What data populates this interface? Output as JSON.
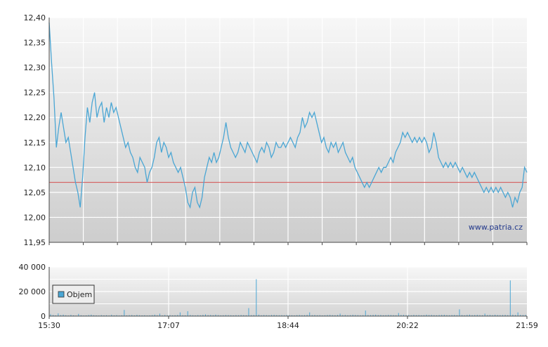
{
  "chart_data": [
    {
      "type": "line",
      "title": "",
      "xlabel": "",
      "ylabel": "",
      "ylim": [
        11.95,
        12.4
      ],
      "y_ticks": [
        "12,40",
        "12,35",
        "12,30",
        "12,25",
        "12,20",
        "12,15",
        "12,10",
        "12,05",
        "12,00",
        "11,95"
      ],
      "reference_line": 12.07,
      "grid": true,
      "watermark": "www.patria.cz",
      "colors": {
        "line": "#4aa6d4",
        "reference": "#d45050",
        "plot_bg_top": "#f7f7f7",
        "plot_bg_bottom": "#cdcdcd"
      },
      "series": [
        {
          "values": [
            12.39,
            12.31,
            12.24,
            12.14,
            12.18,
            12.21,
            12.18,
            12.15,
            12.16,
            12.13,
            12.1,
            12.07,
            12.05,
            12.02,
            12.08,
            12.16,
            12.22,
            12.19,
            12.23,
            12.25,
            12.2,
            12.22,
            12.23,
            12.19,
            12.22,
            12.2,
            12.23,
            12.21,
            12.22,
            12.2,
            12.18,
            12.16,
            12.14,
            12.15,
            12.13,
            12.12,
            12.1,
            12.09,
            12.12,
            12.11,
            12.1,
            12.07,
            12.09,
            12.1,
            12.12,
            12.15,
            12.16,
            12.13,
            12.15,
            12.14,
            12.12,
            12.13,
            12.11,
            12.1,
            12.09,
            12.1,
            12.08,
            12.06,
            12.03,
            12.02,
            12.05,
            12.06,
            12.03,
            12.02,
            12.04,
            12.08,
            12.1,
            12.12,
            12.11,
            12.13,
            12.11,
            12.12,
            12.14,
            12.16,
            12.19,
            12.16,
            12.14,
            12.13,
            12.12,
            12.13,
            12.15,
            12.14,
            12.13,
            12.15,
            12.14,
            12.13,
            12.12,
            12.11,
            12.13,
            12.14,
            12.13,
            12.15,
            12.14,
            12.12,
            12.13,
            12.15,
            12.14,
            12.14,
            12.15,
            12.14,
            12.15,
            12.16,
            12.15,
            12.14,
            12.16,
            12.17,
            12.2,
            12.18,
            12.19,
            12.21,
            12.2,
            12.21,
            12.19,
            12.17,
            12.15,
            12.16,
            12.14,
            12.13,
            12.15,
            12.14,
            12.15,
            12.13,
            12.14,
            12.15,
            12.13,
            12.12,
            12.11,
            12.12,
            12.1,
            12.09,
            12.08,
            12.07,
            12.06,
            12.07,
            12.06,
            12.07,
            12.08,
            12.09,
            12.1,
            12.09,
            12.1,
            12.1,
            12.11,
            12.12,
            12.11,
            12.13,
            12.14,
            12.15,
            12.17,
            12.16,
            12.17,
            12.16,
            12.15,
            12.16,
            12.15,
            12.16,
            12.15,
            12.16,
            12.15,
            12.13,
            12.14,
            12.17,
            12.15,
            12.12,
            12.11,
            12.1,
            12.11,
            12.1,
            12.11,
            12.1,
            12.11,
            12.1,
            12.09,
            12.1,
            12.09,
            12.08,
            12.09,
            12.08,
            12.09,
            12.08,
            12.07,
            12.06,
            12.05,
            12.06,
            12.05,
            12.06,
            12.05,
            12.06,
            12.05,
            12.06,
            12.05,
            12.04,
            12.05,
            12.04,
            12.02,
            12.04,
            12.03,
            12.05,
            12.06,
            12.1,
            12.09
          ]
        }
      ]
    },
    {
      "type": "bar",
      "title": "",
      "xlabel": "",
      "ylabel": "",
      "ylim": [
        0,
        40000
      ],
      "y_ticks": [
        "40 000",
        "20 000",
        "0"
      ],
      "x_ticks": [
        "15:30",
        "17:07",
        "18:44",
        "20:22",
        "21:59"
      ],
      "grid": true,
      "legend": {
        "label": "Objem",
        "placement": "bottom-left"
      },
      "colors": {
        "bar": "#4aa6d4",
        "plot_bg_top": "#f7f7f7",
        "plot_bg_bottom": "#cdcdcd"
      },
      "series": [
        {
          "name": "Objem",
          "values": [
            1500,
            900,
            600,
            2200,
            800,
            1200,
            700,
            500,
            1000,
            600,
            400,
            1800,
            700,
            500,
            600,
            900,
            1200,
            700,
            600,
            500,
            800,
            600,
            700,
            500,
            1100,
            600,
            800,
            500,
            700,
            5000,
            600,
            800,
            900,
            600,
            1000,
            700,
            600,
            700,
            500,
            600,
            800,
            1200,
            700,
            2000,
            600,
            900,
            700,
            800,
            600,
            700,
            900,
            3000,
            700,
            600,
            4000,
            900,
            700,
            600,
            800,
            700,
            1000,
            1400,
            800,
            900,
            700,
            1200,
            800,
            600,
            700,
            900,
            800,
            700,
            600,
            800,
            700,
            900,
            800,
            700,
            6500,
            800,
            900,
            30000,
            1200,
            700,
            900,
            800,
            700,
            900,
            1000,
            800,
            700,
            800,
            700,
            900,
            800,
            700,
            600,
            800,
            900,
            700,
            800,
            1000,
            3000,
            800,
            900,
            700,
            800,
            600,
            700,
            900,
            1000,
            800,
            700,
            900,
            2000,
            800,
            900,
            700,
            800,
            1100,
            900,
            800,
            700,
            800,
            4500,
            900,
            800,
            1000,
            1200,
            800,
            900,
            700,
            800,
            1000,
            900,
            800,
            700,
            2500,
            900,
            1000,
            800,
            900,
            700,
            1000,
            800,
            900,
            700,
            800,
            1200,
            900,
            1000,
            800,
            700,
            900,
            1000,
            1100,
            800,
            700,
            900,
            1000,
            800,
            5500,
            900,
            700,
            1000,
            1200,
            800,
            900,
            1000,
            800,
            700,
            2000,
            900,
            1000,
            800,
            1100,
            900,
            800,
            900,
            1000,
            800,
            29000,
            1200,
            900,
            3000,
            1000,
            900,
            1000
          ]
        }
      ]
    }
  ]
}
